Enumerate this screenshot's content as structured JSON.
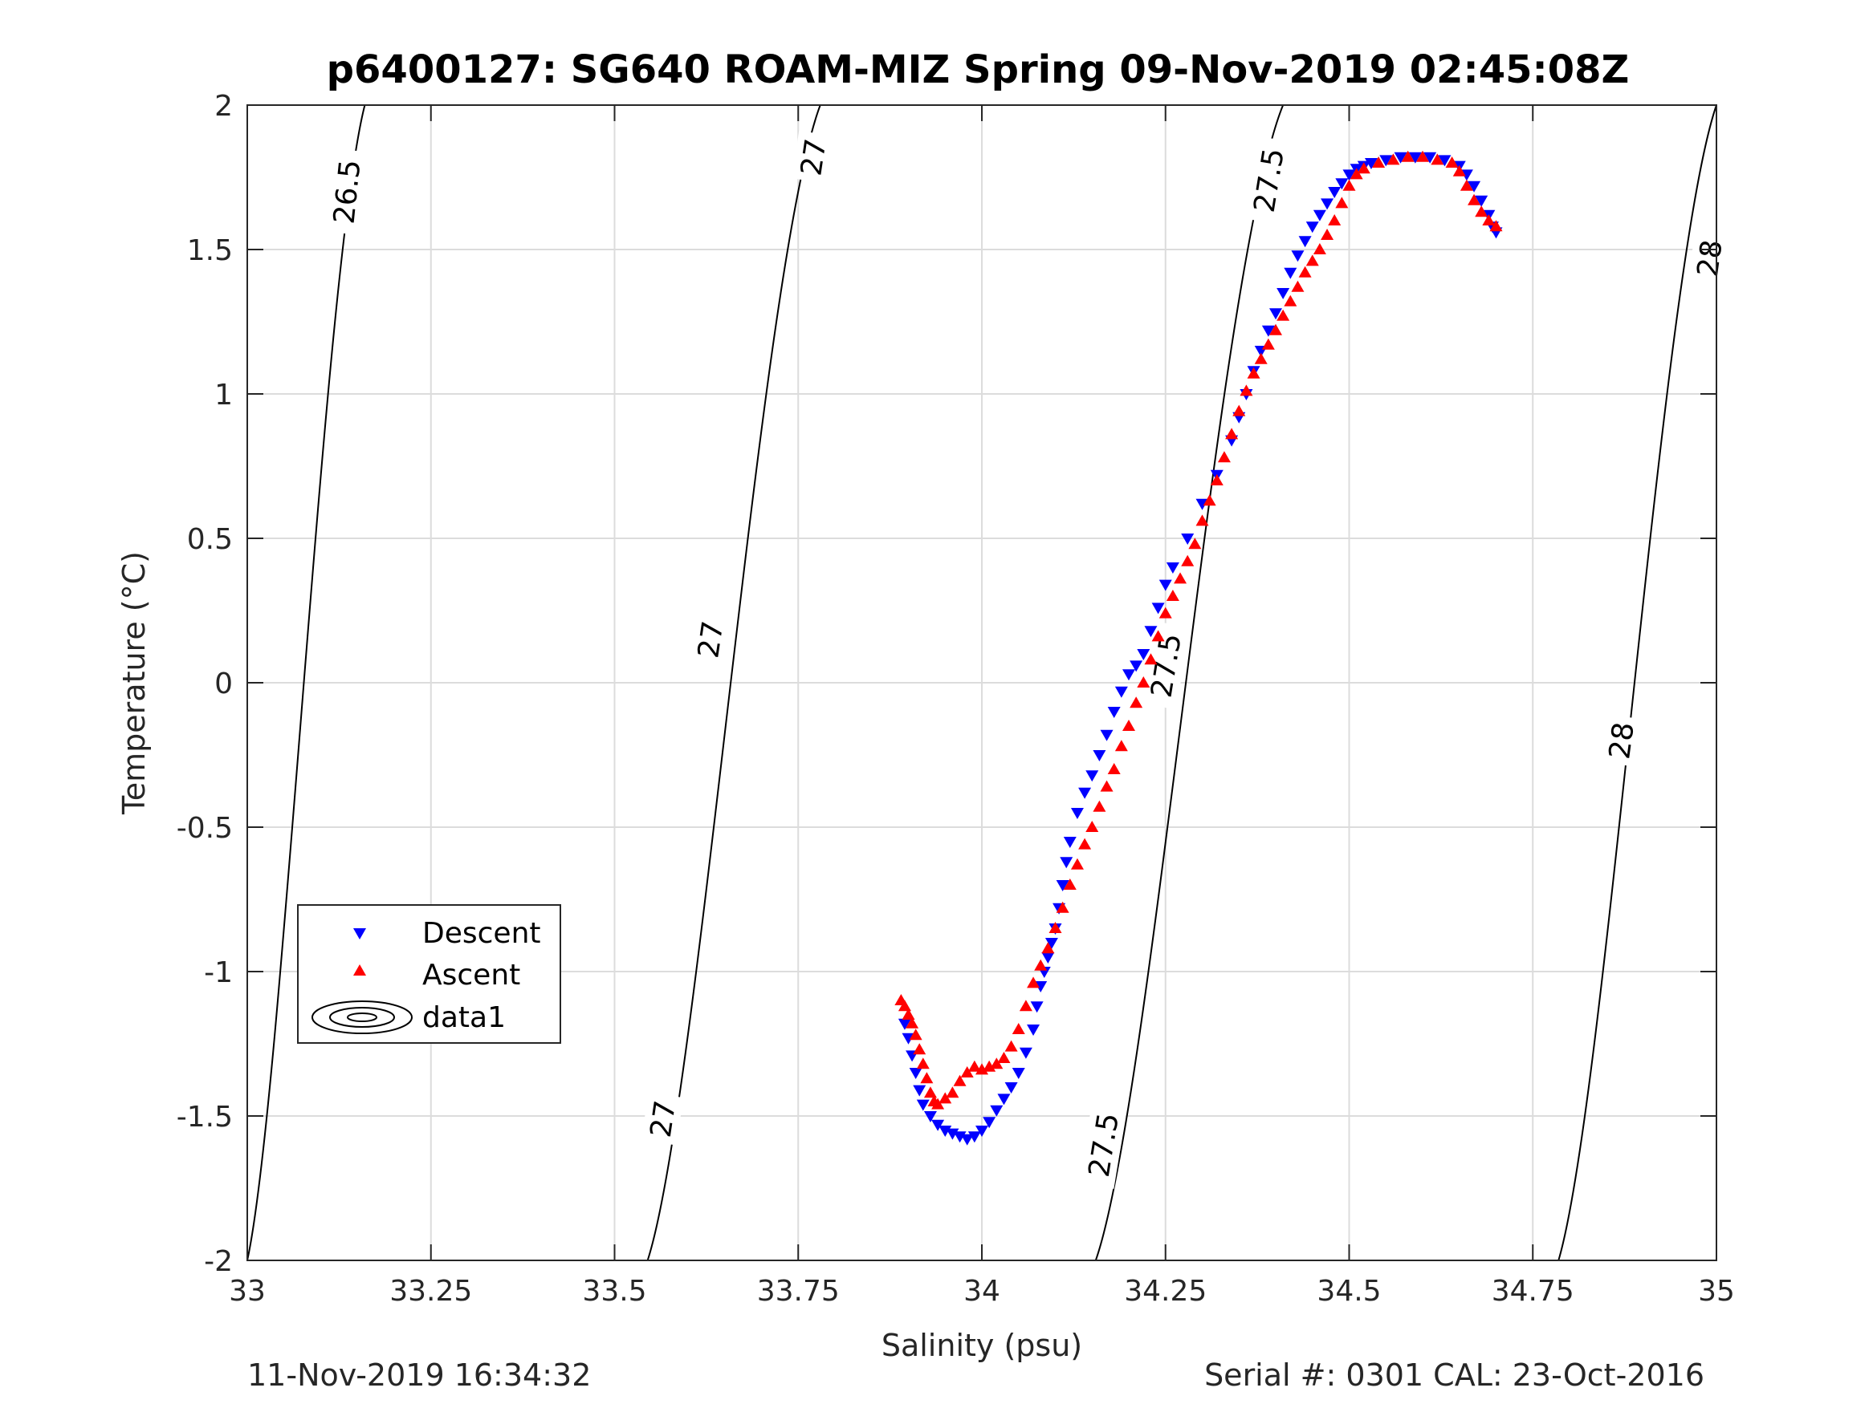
{
  "chart_data": {
    "type": "scatter",
    "title": "p6400127: SG640 ROAM-MIZ Spring 09-Nov-2019 02:45:08Z",
    "xlabel": "Salinity (psu)",
    "ylabel": "Temperature (°C)",
    "xlim": [
      33,
      35
    ],
    "ylim": [
      -2,
      2
    ],
    "xticks": [
      33,
      33.25,
      33.5,
      33.75,
      34,
      34.25,
      34.5,
      34.75,
      35
    ],
    "xtick_labels": [
      "33",
      "33.25",
      "33.5",
      "33.75",
      "34",
      "34.25",
      "34.5",
      "34.75",
      "35"
    ],
    "yticks": [
      -2,
      -1.5,
      -1,
      -0.5,
      0,
      0.5,
      1,
      1.5,
      2
    ],
    "ytick_labels": [
      "-2",
      "-1.5",
      "-1",
      "-0.5",
      "0",
      "0.5",
      "1",
      "1.5",
      "2"
    ],
    "grid": true,
    "legend_position": "lower-left",
    "series": [
      {
        "name": "Descent",
        "marker": "triangle-down",
        "color": "#0000ff",
        "x": [
          33.895,
          33.9,
          33.905,
          33.91,
          33.915,
          33.92,
          33.93,
          33.94,
          33.95,
          33.96,
          33.97,
          33.98,
          33.99,
          34.0,
          34.01,
          34.02,
          34.03,
          34.04,
          34.05,
          34.06,
          34.07,
          34.075,
          34.08,
          34.085,
          34.09,
          34.095,
          34.1,
          34.105,
          34.11,
          34.115,
          34.12,
          34.13,
          34.14,
          34.15,
          34.16,
          34.17,
          34.18,
          34.19,
          34.2,
          34.21,
          34.22,
          34.23,
          34.24,
          34.25,
          34.26,
          34.28,
          34.3,
          34.32,
          34.34,
          34.35,
          34.36,
          34.37,
          34.38,
          34.39,
          34.4,
          34.41,
          34.42,
          34.43,
          34.44,
          34.45,
          34.46,
          34.47,
          34.48,
          34.49,
          34.5,
          34.51,
          34.52,
          34.53,
          34.55,
          34.57,
          34.59,
          34.61,
          34.63,
          34.65,
          34.66,
          34.67,
          34.68,
          34.69,
          34.695,
          34.7
        ],
        "y": [
          -1.18,
          -1.23,
          -1.29,
          -1.35,
          -1.41,
          -1.46,
          -1.5,
          -1.53,
          -1.55,
          -1.56,
          -1.57,
          -1.58,
          -1.57,
          -1.55,
          -1.52,
          -1.48,
          -1.44,
          -1.4,
          -1.35,
          -1.28,
          -1.2,
          -1.12,
          -1.05,
          -1.0,
          -0.95,
          -0.9,
          -0.85,
          -0.78,
          -0.7,
          -0.62,
          -0.55,
          -0.45,
          -0.38,
          -0.32,
          -0.25,
          -0.18,
          -0.1,
          -0.03,
          0.03,
          0.06,
          0.1,
          0.18,
          0.26,
          0.34,
          0.4,
          0.5,
          0.62,
          0.72,
          0.84,
          0.92,
          1.0,
          1.08,
          1.15,
          1.22,
          1.28,
          1.35,
          1.42,
          1.48,
          1.53,
          1.58,
          1.62,
          1.66,
          1.7,
          1.73,
          1.76,
          1.78,
          1.79,
          1.8,
          1.81,
          1.82,
          1.82,
          1.82,
          1.81,
          1.79,
          1.76,
          1.72,
          1.67,
          1.62,
          1.58,
          1.56
        ]
      },
      {
        "name": "Ascent",
        "marker": "triangle-up",
        "color": "#ff0000",
        "x": [
          33.89,
          33.895,
          33.9,
          33.905,
          33.91,
          33.915,
          33.92,
          33.925,
          33.93,
          33.935,
          33.94,
          33.95,
          33.96,
          33.97,
          33.98,
          33.99,
          34.0,
          34.01,
          34.02,
          34.03,
          34.04,
          34.05,
          34.06,
          34.07,
          34.08,
          34.09,
          34.1,
          34.11,
          34.12,
          34.13,
          34.14,
          34.15,
          34.16,
          34.17,
          34.18,
          34.19,
          34.2,
          34.21,
          34.22,
          34.23,
          34.24,
          34.25,
          34.26,
          34.27,
          34.28,
          34.29,
          34.3,
          34.31,
          34.32,
          34.33,
          34.34,
          34.35,
          34.36,
          34.37,
          34.38,
          34.39,
          34.4,
          34.41,
          34.42,
          34.43,
          34.44,
          34.45,
          34.46,
          34.47,
          34.48,
          34.49,
          34.5,
          34.51,
          34.52,
          34.54,
          34.56,
          34.58,
          34.6,
          34.62,
          34.64,
          34.65,
          34.66,
          34.67,
          34.68,
          34.69,
          34.7
        ],
        "y": [
          -1.1,
          -1.12,
          -1.15,
          -1.18,
          -1.22,
          -1.27,
          -1.32,
          -1.37,
          -1.42,
          -1.45,
          -1.46,
          -1.44,
          -1.42,
          -1.38,
          -1.35,
          -1.33,
          -1.34,
          -1.33,
          -1.32,
          -1.3,
          -1.26,
          -1.2,
          -1.12,
          -1.04,
          -0.98,
          -0.92,
          -0.85,
          -0.78,
          -0.7,
          -0.63,
          -0.56,
          -0.5,
          -0.43,
          -0.36,
          -0.3,
          -0.22,
          -0.15,
          -0.07,
          0.0,
          0.08,
          0.16,
          0.24,
          0.3,
          0.36,
          0.42,
          0.48,
          0.56,
          0.63,
          0.7,
          0.78,
          0.86,
          0.94,
          1.01,
          1.07,
          1.12,
          1.17,
          1.22,
          1.27,
          1.32,
          1.37,
          1.42,
          1.46,
          1.5,
          1.55,
          1.6,
          1.66,
          1.72,
          1.76,
          1.78,
          1.8,
          1.81,
          1.82,
          1.82,
          1.81,
          1.8,
          1.77,
          1.72,
          1.67,
          1.63,
          1.6,
          1.58
        ]
      }
    ],
    "contours": [
      {
        "label": "26.5",
        "x0": 33.0,
        "x1": 33.16,
        "label_pos": [
          [
            33.135,
            1.7
          ]
        ]
      },
      {
        "label": "27",
        "x0": 33.545,
        "x1": 33.78,
        "label_pos": [
          [
            33.565,
            -1.51
          ],
          [
            33.63,
            0.15
          ],
          [
            33.77,
            1.82
          ]
        ]
      },
      {
        "label": "27.5",
        "x0": 34.155,
        "x1": 34.41,
        "label_pos": [
          [
            34.165,
            -1.6
          ],
          [
            34.25,
            0.06
          ],
          [
            34.39,
            1.74
          ]
        ]
      },
      {
        "label": "28",
        "x0": 34.785,
        "x1": 35.0,
        "label_pos": [
          [
            34.87,
            -0.2
          ],
          [
            34.99,
            1.47
          ]
        ]
      }
    ],
    "legend_entries": [
      "Descent",
      "Ascent",
      "data1"
    ]
  },
  "footer": {
    "timestamp": "11-Nov-2019 16:34:32",
    "serial_cal": "Serial #: 0301  CAL: 23-Oct-2016"
  }
}
